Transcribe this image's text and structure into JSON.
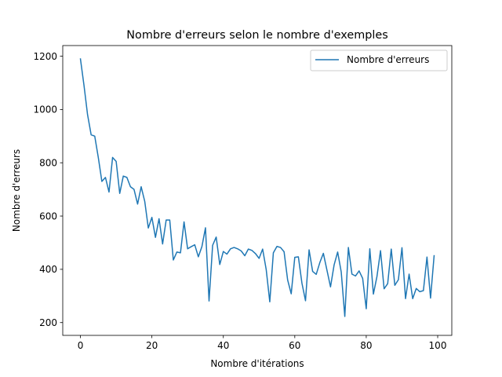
{
  "chart_data": {
    "type": "line",
    "title": "Nombre d'erreurs selon le nombre d'exemples",
    "xlabel": "Nombre d'itérations",
    "ylabel": "Nombre d'erreurs",
    "xlim": [
      -4.95,
      103.95
    ],
    "ylim": [
      152,
      1240
    ],
    "xticks": [
      0,
      20,
      40,
      60,
      80,
      100
    ],
    "yticks": [
      200,
      400,
      600,
      800,
      1000,
      1200
    ],
    "grid": false,
    "legend_position": "top-right",
    "series": [
      {
        "name": "Nombre d'erreurs",
        "color": "#1f77b4",
        "x": [
          0,
          1,
          2,
          3,
          4,
          5,
          6,
          7,
          8,
          9,
          10,
          11,
          12,
          13,
          14,
          15,
          16,
          17,
          18,
          19,
          20,
          21,
          22,
          23,
          24,
          25,
          26,
          27,
          28,
          29,
          30,
          31,
          32,
          33,
          34,
          35,
          36,
          37,
          38,
          39,
          40,
          41,
          42,
          43,
          44,
          45,
          46,
          47,
          48,
          49,
          50,
          51,
          52,
          53,
          54,
          55,
          56,
          57,
          58,
          59,
          60,
          61,
          62,
          63,
          64,
          65,
          66,
          67,
          68,
          69,
          70,
          71,
          72,
          73,
          74,
          75,
          76,
          77,
          78,
          79,
          80,
          81,
          82,
          83,
          84,
          85,
          86,
          87,
          88,
          89,
          90,
          91,
          92,
          93,
          94,
          95,
          96,
          97,
          98,
          99
        ],
        "values": [
          1190,
          1090,
          980,
          905,
          900,
          820,
          730,
          745,
          690,
          820,
          805,
          685,
          750,
          745,
          710,
          700,
          645,
          710,
          655,
          555,
          595,
          520,
          590,
          495,
          585,
          585,
          435,
          465,
          462,
          578,
          477,
          485,
          492,
          447,
          485,
          556,
          281,
          490,
          521,
          418,
          467,
          457,
          477,
          482,
          477,
          469,
          451,
          476,
          471,
          459,
          441,
          476,
          399,
          278,
          462,
          486,
          482,
          466,
          360,
          308,
          445,
          447,
          348,
          282,
          473,
          392,
          381,
          425,
          460,
          397,
          334,
          416,
          465,
          390,
          223,
          482,
          382,
          375,
          394,
          366,
          252,
          477,
          307,
          373,
          470,
          327,
          346,
          476,
          340,
          361,
          481,
          290,
          382,
          290,
          328,
          316,
          320,
          446,
          292,
          451
        ]
      }
    ]
  }
}
